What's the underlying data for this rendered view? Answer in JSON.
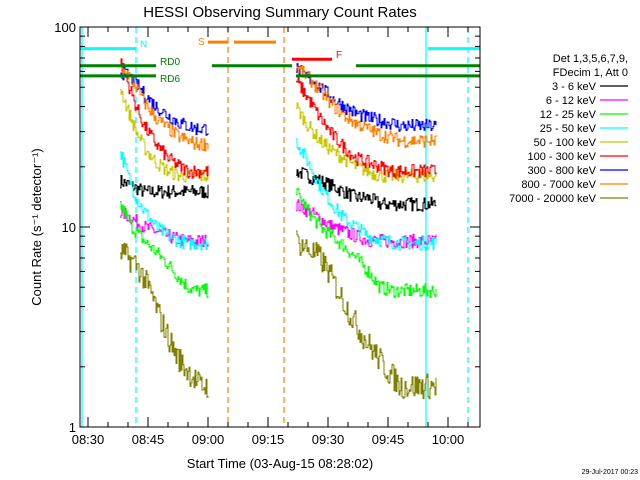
{
  "chart_data": {
    "type": "line",
    "title": "HESSI Observing Summary Count Rates",
    "xlabel": "Start Time (03-Aug-15 08:28:02)",
    "ylabel": "Count Rate (s⁻¹ detector⁻¹)",
    "x_unit": "minutes after 08:28:02",
    "xlim": [
      0,
      100
    ],
    "ylim": [
      1,
      100
    ],
    "y_scale": "log",
    "grid": false,
    "x_ticks": [
      {
        "x": 2,
        "label": "08:30"
      },
      {
        "x": 17,
        "label": "08:45"
      },
      {
        "x": 32,
        "label": "09:00"
      },
      {
        "x": 47,
        "label": "09:15"
      },
      {
        "x": 62,
        "label": "09:30"
      },
      {
        "x": 77,
        "label": "09:45"
      },
      {
        "x": 92,
        "label": "10:00"
      }
    ],
    "y_ticks": [
      {
        "y": 1,
        "label": "1"
      },
      {
        "y": 10,
        "label": "10"
      },
      {
        "y": 100,
        "label": "100"
      }
    ],
    "legend_header": [
      "Det 1,3,5,6,7,9,",
      "FDecim 1, Att 0"
    ],
    "legend_position": "right",
    "series": [
      {
        "name": "3 - 6 keV",
        "color": "#000000",
        "x": [
          10,
          13,
          16,
          19,
          22,
          25,
          27,
          29,
          32,
          54,
          57,
          60,
          63,
          66,
          69,
          72,
          75,
          78,
          80,
          82,
          89
        ],
        "y": [
          17,
          16,
          15,
          15,
          15,
          15,
          15,
          15,
          15,
          19,
          18,
          17,
          16,
          15,
          14,
          14,
          13,
          13,
          13,
          13,
          13
        ]
      },
      {
        "name": "6 - 12 keV",
        "color": "#ff00ff",
        "x": [
          10,
          13,
          16,
          19,
          22,
          25,
          27,
          29,
          32,
          54,
          57,
          60,
          63,
          66,
          69,
          72,
          75,
          78,
          80,
          82,
          89
        ],
        "y": [
          12,
          11,
          10,
          9.5,
          9,
          8.6,
          8.5,
          8.5,
          8.5,
          13,
          12,
          11,
          10,
          9.5,
          9,
          8.6,
          8.5,
          8.5,
          8.5,
          8.5,
          8.5
        ]
      },
      {
        "name": "12 - 25 keV",
        "color": "#00ff00",
        "x": [
          10,
          13,
          16,
          19,
          22,
          25,
          27,
          29,
          32,
          54,
          57,
          60,
          63,
          66,
          69,
          72,
          75,
          78,
          80,
          82,
          89
        ],
        "y": [
          13,
          10,
          8.5,
          7.5,
          6.5,
          5.5,
          5,
          4.8,
          4.8,
          15,
          12,
          10,
          9,
          8,
          7,
          6,
          5,
          4.8,
          4.8,
          4.8,
          4.8
        ]
      },
      {
        "name": "25 - 50 keV",
        "color": "#00ffff",
        "x": [
          10,
          12,
          14,
          16,
          19,
          22,
          25,
          27,
          29,
          32,
          54,
          57,
          60,
          63,
          66,
          69,
          72,
          75,
          78,
          80,
          82,
          89
        ],
        "y": [
          24,
          18,
          14,
          12,
          10,
          9,
          8.5,
          8.3,
          8.3,
          8.3,
          27,
          21,
          16,
          13,
          11,
          10,
          9,
          8.6,
          8.4,
          8.3,
          8.3,
          8.3
        ]
      },
      {
        "name": "50 - 100 keV",
        "color": "#c8c800",
        "x": [
          10,
          12,
          14,
          16,
          19,
          22,
          25,
          27,
          29,
          32,
          54,
          57,
          60,
          63,
          66,
          69,
          72,
          75,
          78,
          80,
          82,
          89
        ],
        "y": [
          50,
          38,
          30,
          25,
          21,
          19,
          18,
          18,
          18,
          18,
          40,
          32,
          27,
          24,
          22,
          20,
          19,
          18,
          18,
          18,
          18,
          18
        ]
      },
      {
        "name": "100 - 300 keV",
        "color": "#ff0000",
        "x": [
          10,
          12,
          14,
          16,
          19,
          22,
          25,
          27,
          29,
          32,
          54,
          57,
          60,
          63,
          66,
          69,
          72,
          75,
          78,
          80,
          82,
          89
        ],
        "y": [
          68,
          52,
          40,
          32,
          26,
          22,
          20,
          19,
          19,
          19,
          54,
          44,
          35,
          29,
          25,
          22,
          21,
          20,
          19,
          19,
          19,
          19
        ]
      },
      {
        "name": "300 - 800 keV",
        "color": "#0000ff",
        "x": [
          10,
          12,
          14,
          16,
          19,
          22,
          25,
          27,
          29,
          32,
          54,
          57,
          60,
          63,
          66,
          69,
          72,
          75,
          78,
          80,
          82,
          89
        ],
        "y": [
          60,
          57,
          52,
          46,
          40,
          36,
          33,
          32,
          31,
          31,
          62,
          56,
          50,
          44,
          40,
          37,
          35,
          34,
          33,
          32,
          32,
          32
        ]
      },
      {
        "name": "800 - 7000 keV",
        "color": "#ff8000",
        "x": [
          10,
          12,
          14,
          16,
          19,
          22,
          25,
          27,
          29,
          32,
          54,
          57,
          60,
          63,
          66,
          69,
          72,
          75,
          78,
          80,
          82,
          89
        ],
        "y": [
          62,
          58,
          50,
          42,
          35,
          31,
          28,
          27,
          26,
          26,
          63,
          56,
          48,
          41,
          36,
          33,
          31,
          29,
          28,
          27,
          27,
          27
        ]
      },
      {
        "name": "7000 - 20000 keV",
        "color": "#808000",
        "x": [
          10,
          12,
          14,
          16,
          18,
          20,
          22,
          24,
          26,
          28,
          30,
          32,
          54,
          56,
          58,
          60,
          62,
          64,
          66,
          68,
          70,
          72,
          74,
          76,
          78,
          80,
          82,
          89
        ],
        "y": [
          7.5,
          7,
          6.5,
          5.5,
          4.5,
          3.5,
          2.8,
          2.3,
          2,
          1.8,
          1.6,
          1.6,
          8.5,
          8,
          7.5,
          7,
          6,
          5,
          4.2,
          3.5,
          3,
          2.6,
          2.3,
          2,
          1.8,
          1.6,
          1.6,
          1.6
        ]
      }
    ],
    "flags": [
      {
        "label": "N",
        "color": "#00ffff",
        "segments": [
          [
            0,
            14
          ],
          [
            87,
            100
          ]
        ],
        "y": 78
      },
      {
        "label": "RD0",
        "color": "#008000",
        "segments": [
          [
            0,
            19
          ],
          [
            33,
            53
          ],
          [
            69,
            100
          ]
        ],
        "y": 64
      },
      {
        "label": "RD6",
        "color": "#008000",
        "segments": [
          [
            0,
            19
          ],
          [
            54,
            100
          ]
        ],
        "y": 57
      },
      {
        "label": "S",
        "color": "#ff8000",
        "segments": [
          [
            32,
            37
          ],
          [
            38.5,
            49
          ]
        ],
        "y": 84
      },
      {
        "label": "F",
        "color": "#ff0000",
        "segments": [
          [
            53,
            63
          ]
        ],
        "y": 69
      }
    ],
    "vertical_markers": [
      {
        "x": 14,
        "color": "#00ffff",
        "style": "dashed"
      },
      {
        "x": 97,
        "color": "#00ffff",
        "style": "dashed"
      },
      {
        "x": 37,
        "color": "#ff8000",
        "style": "dashed"
      },
      {
        "x": 51,
        "color": "#ff8000",
        "style": "dashed"
      },
      {
        "x": 0.5,
        "color": "#00ffff",
        "style": "solid"
      },
      {
        "x": 86.5,
        "color": "#00ffff",
        "style": "solid"
      }
    ],
    "data_gaps": [
      [
        33,
        53
      ],
      [
        89,
        100
      ]
    ]
  },
  "footer": {
    "timestamp": "29-Jul-2017 00:23"
  }
}
